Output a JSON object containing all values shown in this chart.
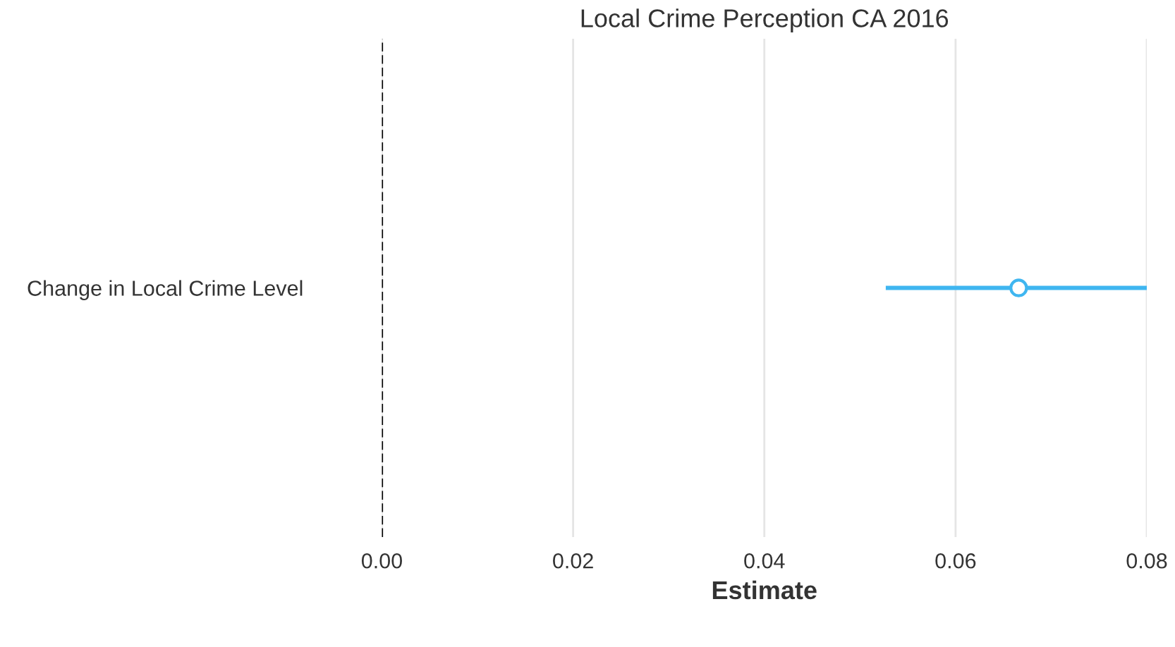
{
  "chart_data": {
    "type": "scatter",
    "title": "Local Crime Perception CA 2016",
    "xlabel": "Estimate",
    "orientation": "horizontal",
    "categories": [
      "Change in Local Crime Level"
    ],
    "series": [
      {
        "color": "#3fb6f0",
        "values": [
          0.0666
        ],
        "errors": [
          [
            0.0527,
            0.08
          ]
        ]
      }
    ],
    "xlim": [
      0,
      0.08
    ],
    "xticks": [
      {
        "value": 0,
        "label": "0.00"
      },
      {
        "value": 0.02,
        "label": "0.02"
      },
      {
        "value": 0.04,
        "label": "0.04"
      },
      {
        "value": 0.06,
        "label": "0.06"
      },
      {
        "value": 0.08,
        "label": "0.08"
      }
    ],
    "ref_lines": [
      {
        "axis": "x",
        "value": 0,
        "color": "#000000",
        "line_style": "dashed"
      }
    ],
    "grid": "x",
    "marker": "circle"
  }
}
